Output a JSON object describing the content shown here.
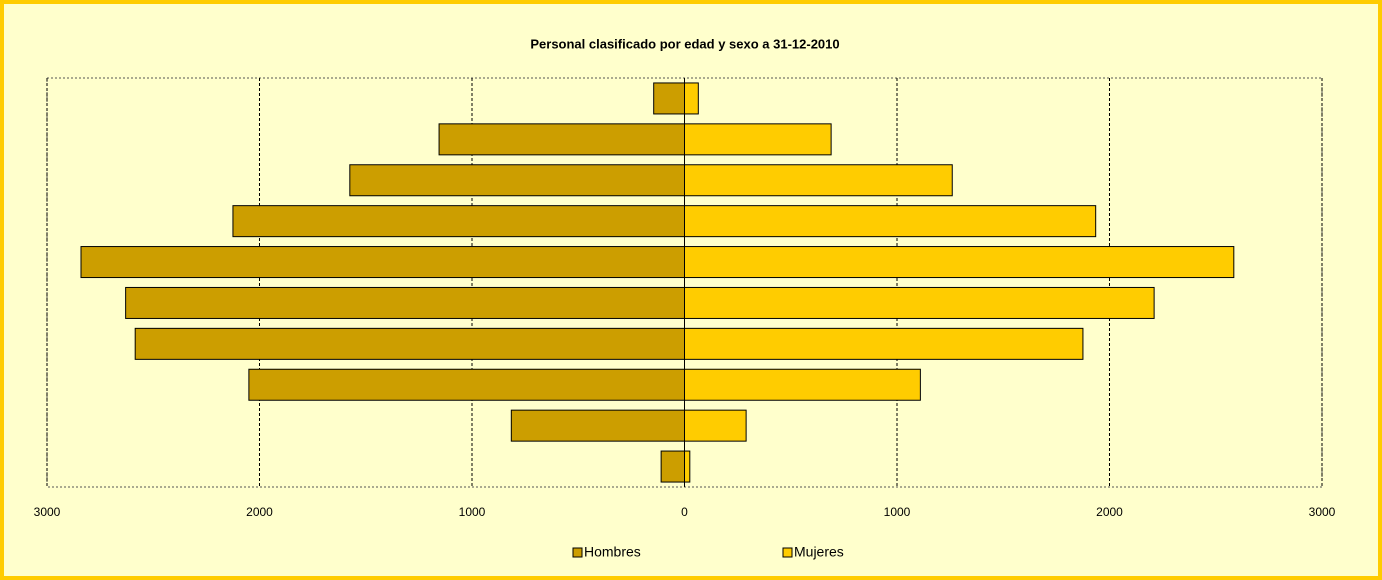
{
  "chart_data": {
    "type": "bar",
    "orientation": "horizontal",
    "title": "Personal clasificado  por edad y sexo a 31-12-2010",
    "categories": [
      null,
      null,
      null,
      null,
      null,
      null,
      null,
      null,
      null,
      null
    ],
    "series": [
      {
        "name": "Hombres",
        "color": "#cc9e00",
        "values": [
          -145,
          -1155,
          -1575,
          -2125,
          -2840,
          -2630,
          -2585,
          -2050,
          -815,
          -110
        ]
      },
      {
        "name": "Mujeres",
        "color": "#ffcc00",
        "values": [
          65,
          690,
          1260,
          1935,
          2585,
          2210,
          1875,
          1110,
          290,
          25
        ]
      }
    ],
    "xlim": [
      -3000,
      3000
    ],
    "xticks": [
      {
        "value": -3000,
        "label": "3000"
      },
      {
        "value": -2000,
        "label": "2000"
      },
      {
        "value": -1000,
        "label": "1000"
      },
      0,
      1000,
      2000,
      3000
    ],
    "grid": true,
    "legend": "bottom"
  }
}
